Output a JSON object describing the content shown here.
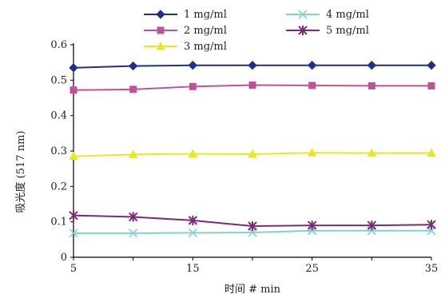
{
  "chart_data": {
    "type": "line",
    "title": "",
    "xlabel": "时间 # min",
    "ylabel": "吸光度 (517 nm)",
    "x": [
      5,
      10,
      15,
      20,
      25,
      30,
      35
    ],
    "xticks": [
      "5",
      "15",
      "25",
      "35"
    ],
    "xlim": [
      5,
      35
    ],
    "ylim": [
      0,
      0.6
    ],
    "yticks": [
      "0",
      "0.1",
      "0.2",
      "0.3",
      "0.4",
      "0.5",
      "0.6"
    ],
    "grid": false,
    "legend_position": "top",
    "series": [
      {
        "name": "1 mg/ml",
        "color": "#1f2f8c",
        "marker": "diamond",
        "values": [
          0.535,
          0.54,
          0.542,
          0.542,
          0.542,
          0.542,
          0.542
        ]
      },
      {
        "name": "2 mg/ml",
        "color": "#c0509a",
        "marker": "square",
        "values": [
          0.472,
          0.474,
          0.482,
          0.486,
          0.485,
          0.484,
          0.484
        ]
      },
      {
        "name": "3 mg/ml",
        "color": "#e8e820",
        "marker": "triangle",
        "values": [
          0.285,
          0.29,
          0.292,
          0.291,
          0.295,
          0.294,
          0.294
        ]
      },
      {
        "name": "4 mg/ml",
        "color": "#7fd3cf",
        "marker": "x",
        "values": [
          0.068,
          0.068,
          0.069,
          0.07,
          0.075,
          0.075,
          0.075
        ]
      },
      {
        "name": "5 mg/ml",
        "color": "#7b2a78",
        "marker": "star",
        "values": [
          0.118,
          0.114,
          0.104,
          0.088,
          0.09,
          0.09,
          0.092
        ]
      }
    ]
  }
}
